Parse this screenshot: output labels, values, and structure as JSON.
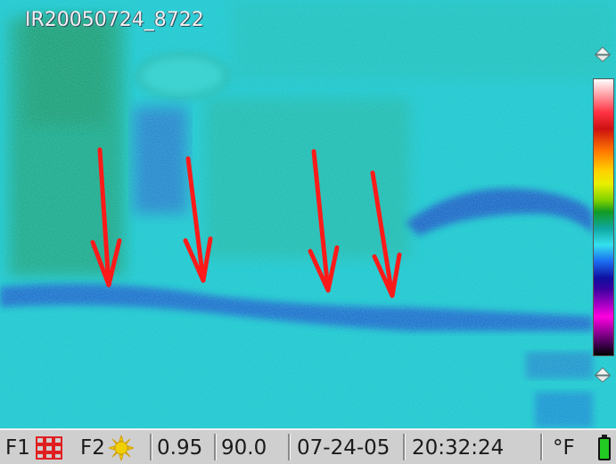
{
  "camera": {
    "image_name": "IR20050724_8722",
    "f1_label": "F1",
    "f2_label": "F2",
    "emissivity": "0.95",
    "temperature": "90.0",
    "date": "07-24-05",
    "time": "20:32:24",
    "unit": "°F"
  },
  "icons": {
    "f1_icon": "grid-icon",
    "f2_icon": "sun-icon",
    "battery": "battery-icon",
    "palette_up": "palette-up-icon",
    "palette_down": "palette-down-icon"
  },
  "colors": {
    "annotation_arrow": "#ff1a1a",
    "battery_fill": "#22cc22"
  }
}
